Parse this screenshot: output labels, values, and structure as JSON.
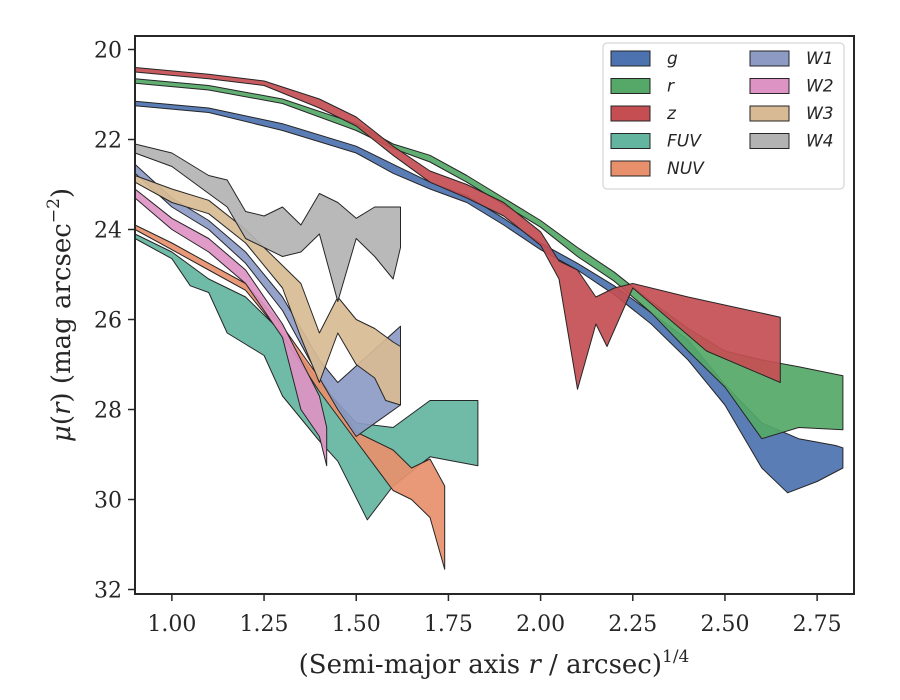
{
  "chart_data": {
    "type": "area",
    "xlabel_main": "(Semi-major axis ",
    "xlabel_var": "r",
    "xlabel_units": " / arcsec)",
    "xlabel_sup": "1/4",
    "ylabel_mu": "μ",
    "ylabel_open": "(",
    "ylabel_var": "r",
    "ylabel_close": ") (mag arcsec",
    "ylabel_sup": "−2",
    "ylabel_end": ")",
    "xlim": [
      0.9,
      2.85
    ],
    "ylim": [
      32.1,
      19.7
    ],
    "y_inverted": true,
    "xticks": [
      1.0,
      1.25,
      1.5,
      1.75,
      2.0,
      2.25,
      2.5,
      2.75
    ],
    "xtick_labels": [
      "1.00",
      "1.25",
      "1.50",
      "1.75",
      "2.00",
      "2.25",
      "2.50",
      "2.75"
    ],
    "yticks": [
      20,
      22,
      24,
      26,
      28,
      30,
      32
    ],
    "ytick_labels": [
      "20",
      "22",
      "24",
      "26",
      "28",
      "30",
      "32"
    ],
    "grid": false,
    "legend_position": "top-right",
    "series": [
      {
        "name": "g",
        "color": "#4c72b0",
        "upper": [
          [
            0.9,
            21.15
          ],
          [
            1.1,
            21.3
          ],
          [
            1.3,
            21.65
          ],
          [
            1.5,
            22.15
          ],
          [
            1.6,
            22.55
          ],
          [
            1.7,
            22.95
          ],
          [
            1.8,
            23.25
          ],
          [
            1.9,
            23.75
          ],
          [
            2.0,
            24.3
          ],
          [
            2.1,
            24.75
          ],
          [
            2.2,
            25.25
          ],
          [
            2.3,
            25.85
          ],
          [
            2.4,
            26.45
          ],
          [
            2.5,
            27.45
          ],
          [
            2.6,
            28.3
          ],
          [
            2.7,
            28.65
          ],
          [
            2.8,
            28.8
          ],
          [
            2.82,
            28.85
          ]
        ],
        "lower": [
          [
            0.9,
            21.25
          ],
          [
            1.1,
            21.4
          ],
          [
            1.3,
            21.8
          ],
          [
            1.5,
            22.3
          ],
          [
            1.6,
            22.75
          ],
          [
            1.7,
            23.1
          ],
          [
            1.8,
            23.4
          ],
          [
            1.9,
            23.9
          ],
          [
            2.0,
            24.45
          ],
          [
            2.1,
            24.9
          ],
          [
            2.2,
            25.45
          ],
          [
            2.3,
            26.1
          ],
          [
            2.4,
            26.9
          ],
          [
            2.5,
            27.9
          ],
          [
            2.6,
            29.3
          ],
          [
            2.67,
            29.85
          ],
          [
            2.75,
            29.6
          ],
          [
            2.82,
            29.3
          ]
        ]
      },
      {
        "name": "r",
        "color": "#55a868",
        "upper": [
          [
            0.9,
            20.65
          ],
          [
            1.1,
            20.8
          ],
          [
            1.3,
            21.1
          ],
          [
            1.5,
            21.65
          ],
          [
            1.6,
            22.1
          ],
          [
            1.7,
            22.35
          ],
          [
            1.8,
            22.8
          ],
          [
            1.9,
            23.3
          ],
          [
            2.0,
            23.8
          ],
          [
            2.1,
            24.4
          ],
          [
            2.2,
            24.95
          ],
          [
            2.3,
            25.6
          ],
          [
            2.4,
            26.2
          ],
          [
            2.5,
            26.7
          ],
          [
            2.6,
            26.9
          ],
          [
            2.7,
            27.05
          ],
          [
            2.82,
            27.25
          ]
        ],
        "lower": [
          [
            0.9,
            20.75
          ],
          [
            1.1,
            20.9
          ],
          [
            1.3,
            21.2
          ],
          [
            1.5,
            21.8
          ],
          [
            1.6,
            22.2
          ],
          [
            1.7,
            22.5
          ],
          [
            1.8,
            22.95
          ],
          [
            1.9,
            23.45
          ],
          [
            2.0,
            23.95
          ],
          [
            2.1,
            24.6
          ],
          [
            2.2,
            25.15
          ],
          [
            2.3,
            25.85
          ],
          [
            2.4,
            26.7
          ],
          [
            2.5,
            27.5
          ],
          [
            2.6,
            28.65
          ],
          [
            2.7,
            28.4
          ],
          [
            2.82,
            28.45
          ]
        ]
      },
      {
        "name": "z",
        "color": "#c44e52",
        "upper": [
          [
            0.9,
            20.4
          ],
          [
            1.1,
            20.55
          ],
          [
            1.25,
            20.7
          ],
          [
            1.4,
            21.1
          ],
          [
            1.5,
            21.5
          ],
          [
            1.6,
            22.15
          ],
          [
            1.7,
            22.7
          ],
          [
            1.8,
            23.0
          ],
          [
            1.9,
            23.4
          ],
          [
            2.0,
            24.05
          ],
          [
            2.05,
            24.7
          ],
          [
            2.1,
            24.9
          ],
          [
            2.15,
            25.5
          ],
          [
            2.2,
            25.3
          ],
          [
            2.25,
            25.2
          ],
          [
            2.4,
            25.5
          ],
          [
            2.65,
            25.95
          ]
        ],
        "lower": [
          [
            0.9,
            20.5
          ],
          [
            1.1,
            20.65
          ],
          [
            1.25,
            20.8
          ],
          [
            1.4,
            21.3
          ],
          [
            1.5,
            21.7
          ],
          [
            1.6,
            22.35
          ],
          [
            1.7,
            22.95
          ],
          [
            1.8,
            23.3
          ],
          [
            1.9,
            23.7
          ],
          [
            2.0,
            24.35
          ],
          [
            2.05,
            25.1
          ],
          [
            2.1,
            27.55
          ],
          [
            2.15,
            26.1
          ],
          [
            2.18,
            26.6
          ],
          [
            2.25,
            25.3
          ],
          [
            2.45,
            26.7
          ],
          [
            2.65,
            27.4
          ]
        ]
      },
      {
        "name": "FUV",
        "color": "#64b5a0",
        "upper": [
          [
            0.9,
            24.1
          ],
          [
            1.0,
            24.5
          ],
          [
            1.1,
            25.1
          ],
          [
            1.2,
            25.5
          ],
          [
            1.3,
            26.3
          ],
          [
            1.4,
            27.4
          ],
          [
            1.5,
            28.3
          ],
          [
            1.6,
            28.4
          ],
          [
            1.7,
            27.8
          ],
          [
            1.83,
            27.8
          ]
        ],
        "lower": [
          [
            0.9,
            24.2
          ],
          [
            1.0,
            24.65
          ],
          [
            1.05,
            25.25
          ],
          [
            1.1,
            25.4
          ],
          [
            1.15,
            26.3
          ],
          [
            1.25,
            26.8
          ],
          [
            1.3,
            27.7
          ],
          [
            1.4,
            28.7
          ],
          [
            1.45,
            29.15
          ],
          [
            1.53,
            30.45
          ],
          [
            1.6,
            29.7
          ],
          [
            1.7,
            29.05
          ],
          [
            1.83,
            29.25
          ]
        ]
      },
      {
        "name": "NUV",
        "color": "#e8906c",
        "upper": [
          [
            0.9,
            23.9
          ],
          [
            1.0,
            24.3
          ],
          [
            1.1,
            24.75
          ],
          [
            1.2,
            25.2
          ],
          [
            1.3,
            26.15
          ],
          [
            1.4,
            27.3
          ],
          [
            1.5,
            28.5
          ],
          [
            1.6,
            28.9
          ],
          [
            1.65,
            29.3
          ],
          [
            1.7,
            29.1
          ],
          [
            1.74,
            29.7
          ]
        ],
        "lower": [
          [
            0.9,
            24.0
          ],
          [
            1.0,
            24.45
          ],
          [
            1.1,
            24.9
          ],
          [
            1.2,
            25.35
          ],
          [
            1.3,
            26.35
          ],
          [
            1.4,
            27.6
          ],
          [
            1.5,
            28.7
          ],
          [
            1.6,
            29.8
          ],
          [
            1.65,
            30.0
          ],
          [
            1.7,
            30.4
          ],
          [
            1.74,
            31.55
          ]
        ]
      },
      {
        "name": "W1",
        "color": "#8c9ac4",
        "upper": [
          [
            0.9,
            22.55
          ],
          [
            1.0,
            23.3
          ],
          [
            1.1,
            23.8
          ],
          [
            1.2,
            24.5
          ],
          [
            1.3,
            25.5
          ],
          [
            1.4,
            26.9
          ],
          [
            1.45,
            27.4
          ],
          [
            1.62,
            26.15
          ]
        ],
        "lower": [
          [
            0.9,
            22.75
          ],
          [
            1.0,
            23.5
          ],
          [
            1.1,
            24.0
          ],
          [
            1.2,
            24.75
          ],
          [
            1.3,
            25.8
          ],
          [
            1.4,
            27.3
          ],
          [
            1.45,
            28.0
          ],
          [
            1.5,
            28.6
          ],
          [
            1.62,
            27.9
          ]
        ]
      },
      {
        "name": "W2",
        "color": "#dd93c4",
        "upper": [
          [
            0.9,
            23.1
          ],
          [
            1.0,
            23.75
          ],
          [
            1.1,
            24.2
          ],
          [
            1.2,
            24.9
          ],
          [
            1.3,
            26.1
          ],
          [
            1.4,
            27.7
          ],
          [
            1.42,
            28.4
          ]
        ],
        "lower": [
          [
            0.9,
            23.3
          ],
          [
            1.0,
            24.0
          ],
          [
            1.1,
            24.5
          ],
          [
            1.2,
            25.2
          ],
          [
            1.3,
            26.4
          ],
          [
            1.35,
            28.0
          ],
          [
            1.4,
            28.6
          ],
          [
            1.42,
            29.25
          ]
        ]
      },
      {
        "name": "W3",
        "color": "#d8bb94",
        "upper": [
          [
            0.9,
            22.8
          ],
          [
            1.0,
            23.1
          ],
          [
            1.1,
            23.35
          ],
          [
            1.2,
            24.0
          ],
          [
            1.3,
            24.8
          ],
          [
            1.35,
            25.2
          ],
          [
            1.4,
            26.3
          ],
          [
            1.45,
            25.5
          ],
          [
            1.5,
            26.0
          ],
          [
            1.55,
            26.2
          ],
          [
            1.6,
            26.5
          ],
          [
            1.62,
            26.6
          ]
        ],
        "lower": [
          [
            0.9,
            22.95
          ],
          [
            1.0,
            23.4
          ],
          [
            1.1,
            23.65
          ],
          [
            1.2,
            24.3
          ],
          [
            1.3,
            25.3
          ],
          [
            1.35,
            26.4
          ],
          [
            1.4,
            27.4
          ],
          [
            1.45,
            26.3
          ],
          [
            1.5,
            27.0
          ],
          [
            1.55,
            27.3
          ],
          [
            1.58,
            27.8
          ],
          [
            1.62,
            27.9
          ]
        ]
      },
      {
        "name": "W4",
        "color": "#b3b3b3",
        "upper": [
          [
            0.9,
            22.1
          ],
          [
            1.0,
            22.3
          ],
          [
            1.1,
            22.8
          ],
          [
            1.15,
            22.9
          ],
          [
            1.2,
            23.6
          ],
          [
            1.25,
            23.7
          ],
          [
            1.3,
            23.5
          ],
          [
            1.35,
            23.9
          ],
          [
            1.4,
            23.2
          ],
          [
            1.45,
            23.4
          ],
          [
            1.5,
            23.75
          ],
          [
            1.55,
            23.5
          ],
          [
            1.62,
            23.5
          ]
        ],
        "lower": [
          [
            0.9,
            22.3
          ],
          [
            1.0,
            22.6
          ],
          [
            1.1,
            23.2
          ],
          [
            1.15,
            23.5
          ],
          [
            1.2,
            24.2
          ],
          [
            1.3,
            24.6
          ],
          [
            1.35,
            24.5
          ],
          [
            1.4,
            24.1
          ],
          [
            1.45,
            25.6
          ],
          [
            1.5,
            24.2
          ],
          [
            1.55,
            24.6
          ],
          [
            1.6,
            25.1
          ],
          [
            1.62,
            24.4
          ]
        ]
      }
    ]
  }
}
